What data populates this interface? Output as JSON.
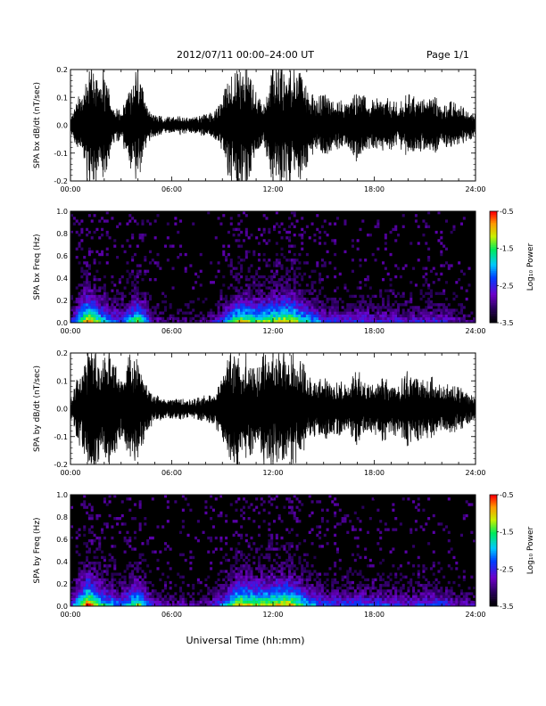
{
  "header": {
    "title": "2012/07/11   00:00–24:00 UT",
    "page": "Page 1/1"
  },
  "chart_data": [
    {
      "type": "line",
      "ylabel": "SPA bx dB/dt (nT/sec)",
      "xlim": [
        "00:00",
        "24:00"
      ],
      "ylim": [
        -0.2,
        0.2
      ],
      "x_tick_labels": [
        "00:00",
        "06:00",
        "12:00",
        "18:00",
        "24:00"
      ],
      "y_tick_labels": [
        "-0.2",
        "-0.1",
        "0.0",
        "0.1",
        "0.2"
      ],
      "envelope_hours": [
        0,
        0.5,
        1,
        1.5,
        2,
        2.5,
        3,
        3.5,
        4,
        4.5,
        5,
        5.5,
        6,
        6.5,
        7,
        7.5,
        8,
        8.5,
        9,
        9.5,
        10,
        10.5,
        11,
        11.5,
        12,
        12.5,
        13,
        13.5,
        14,
        14.5,
        15,
        15.5,
        16,
        16.5,
        17,
        17.5,
        18,
        18.5,
        19,
        19.5,
        20,
        20.5,
        21,
        21.5,
        22,
        22.5,
        23,
        23.5,
        24
      ],
      "envelope_amplitude": [
        0.03,
        0.11,
        0.22,
        0.22,
        0.22,
        0.08,
        0.05,
        0.16,
        0.22,
        0.07,
        0.04,
        0.035,
        0.03,
        0.035,
        0.03,
        0.035,
        0.04,
        0.05,
        0.1,
        0.22,
        0.22,
        0.22,
        0.12,
        0.08,
        0.22,
        0.22,
        0.22,
        0.22,
        0.15,
        0.1,
        0.12,
        0.09,
        0.1,
        0.08,
        0.14,
        0.1,
        0.09,
        0.11,
        0.09,
        0.08,
        0.12,
        0.1,
        0.1,
        0.12,
        0.07,
        0.09,
        0.08,
        0.06,
        0.04
      ]
    },
    {
      "type": "heatmap",
      "ylabel": "SPA bx Freq (Hz)",
      "colorbar_label": "Log₁₀ Power",
      "colorbar_ticks": [
        "-0.5",
        "-1.5",
        "-2.5",
        "-3.5"
      ],
      "clim": [
        -3.5,
        -0.5
      ],
      "xlim": [
        "00:00",
        "24:00"
      ],
      "ylim": [
        0.0,
        1.0
      ],
      "x_tick_labels": [
        "00:00",
        "06:00",
        "12:00",
        "18:00",
        "24:00"
      ],
      "y_tick_labels": [
        "0.0",
        "0.2",
        "0.4",
        "0.6",
        "0.8",
        "1.0"
      ],
      "activity_hours": [
        0,
        1,
        2,
        3,
        4,
        5,
        6,
        7,
        8,
        9,
        10,
        11,
        12,
        13,
        14,
        15,
        16,
        17,
        18,
        19,
        20,
        21,
        22,
        23,
        24
      ],
      "activity_level": [
        0.25,
        0.85,
        0.5,
        0.35,
        0.7,
        0.2,
        0.15,
        0.15,
        0.15,
        0.35,
        0.75,
        0.65,
        0.7,
        0.8,
        0.55,
        0.35,
        0.3,
        0.35,
        0.3,
        0.3,
        0.25,
        0.3,
        0.3,
        0.2,
        0.15
      ]
    },
    {
      "type": "line",
      "ylabel": "SPA by dB/dt (nT/sec)",
      "xlim": [
        "00:00",
        "24:00"
      ],
      "ylim": [
        -0.2,
        0.2
      ],
      "x_tick_labels": [
        "00:00",
        "06:00",
        "12:00",
        "18:00",
        "24:00"
      ],
      "y_tick_labels": [
        "-0.2",
        "-0.1",
        "0.0",
        "0.1",
        "0.2"
      ],
      "envelope_hours": [
        0,
        0.5,
        1,
        1.5,
        2,
        2.5,
        3,
        3.5,
        4,
        4.5,
        5,
        5.5,
        6,
        6.5,
        7,
        7.5,
        8,
        8.5,
        9,
        9.5,
        10,
        10.5,
        11,
        11.5,
        12,
        12.5,
        13,
        13.5,
        14,
        14.5,
        15,
        15.5,
        16,
        16.5,
        17,
        17.5,
        18,
        18.5,
        19,
        19.5,
        20,
        20.5,
        21,
        21.5,
        22,
        22.5,
        23,
        23.5,
        24
      ],
      "envelope_amplitude": [
        0.03,
        0.13,
        0.22,
        0.22,
        0.22,
        0.22,
        0.1,
        0.2,
        0.18,
        0.09,
        0.05,
        0.04,
        0.035,
        0.04,
        0.035,
        0.04,
        0.05,
        0.06,
        0.12,
        0.22,
        0.22,
        0.22,
        0.14,
        0.22,
        0.22,
        0.22,
        0.22,
        0.2,
        0.14,
        0.1,
        0.12,
        0.09,
        0.1,
        0.09,
        0.15,
        0.1,
        0.09,
        0.12,
        0.1,
        0.1,
        0.14,
        0.12,
        0.11,
        0.12,
        0.08,
        0.1,
        0.08,
        0.06,
        0.04
      ]
    },
    {
      "type": "heatmap",
      "ylabel": "SPA by Freq (Hz)",
      "colorbar_label": "Log₁₀ Power",
      "colorbar_ticks": [
        "-0.5",
        "-1.5",
        "-2.5",
        "-3.5"
      ],
      "clim": [
        -3.5,
        -0.5
      ],
      "xlim": [
        "00:00",
        "24:00"
      ],
      "ylim": [
        0.0,
        1.0
      ],
      "x_tick_labels": [
        "00:00",
        "06:00",
        "12:00",
        "18:00",
        "24:00"
      ],
      "y_tick_labels": [
        "0.0",
        "0.2",
        "0.4",
        "0.6",
        "0.8",
        "1.0"
      ],
      "activity_hours": [
        0,
        1,
        2,
        3,
        4,
        5,
        6,
        7,
        8,
        9,
        10,
        11,
        12,
        13,
        14,
        15,
        16,
        17,
        18,
        19,
        20,
        21,
        22,
        23,
        24
      ],
      "activity_level": [
        0.3,
        0.9,
        0.55,
        0.4,
        0.7,
        0.25,
        0.2,
        0.2,
        0.2,
        0.4,
        0.8,
        0.7,
        0.75,
        0.8,
        0.55,
        0.35,
        0.35,
        0.4,
        0.35,
        0.35,
        0.3,
        0.35,
        0.35,
        0.25,
        0.2
      ]
    }
  ],
  "xaxis_title": "Universal Time (hh:mm)"
}
